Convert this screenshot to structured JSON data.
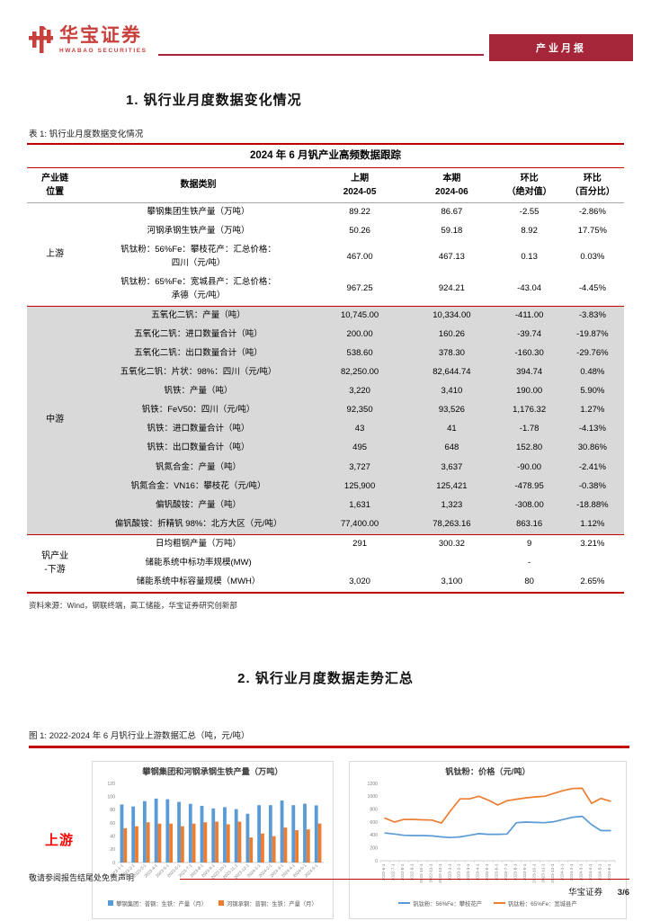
{
  "brand": {
    "logo_title": "华宝证券",
    "logo_subtitle": "HWABAO SECURITIES",
    "badge_label": "产业月报"
  },
  "section1": {
    "title": "1. 钒行业月度数据变化情况"
  },
  "table": {
    "caption": "表 1: 钒行业月度数据变化情况",
    "title": "2024 年 6 月钒产业高频数据跟踪",
    "headers": {
      "chain_line1": "产业链",
      "chain_line2": "位置",
      "category": "数据类别",
      "prev_line1": "上期",
      "prev_line2": "2024-05",
      "curr_line1": "本期",
      "curr_line2": "2024-06",
      "abs_line1": "环比",
      "abs_line2": "（绝对值）",
      "pct_line1": "环比",
      "pct_line2": "（百分比）"
    },
    "sections": [
      {
        "label": "上游",
        "shaded": false,
        "rows": [
          {
            "name": "攀钢集团生铁产量（万吨）",
            "prev": "89.22",
            "curr": "86.67",
            "abs": "-2.55",
            "pct": "-2.86%",
            "dir": "down"
          },
          {
            "name": "河钢承钢生铁产量（万吨）",
            "prev": "50.26",
            "curr": "59.18",
            "abs": "8.92",
            "pct": "17.75%",
            "dir": "up"
          },
          {
            "name": "钒钛粉：56%Fe：攀枝花产：汇总价格：\n四川（元/吨）",
            "prev": "467.00",
            "curr": "467.13",
            "abs": "0.13",
            "pct": "0.03%",
            "dir": "up"
          },
          {
            "name": "钒钛粉：65%Fe：宽城县产：汇总价格：\n承德（元/吨）",
            "prev": "967.25",
            "curr": "924.21",
            "abs": "-43.04",
            "pct": "-4.45%",
            "dir": "down"
          }
        ]
      },
      {
        "label": "中游",
        "shaded": true,
        "rows": [
          {
            "name": "五氧化二钒：产量（吨）",
            "prev": "10,745.00",
            "curr": "10,334.00",
            "abs": "-411.00",
            "pct": "-3.83%",
            "dir": "down"
          },
          {
            "name": "五氧化二钒：进口数量合计（吨）",
            "prev": "200.00",
            "curr": "160.26",
            "abs": "-39.74",
            "pct": "-19.87%",
            "dir": "down"
          },
          {
            "name": "五氧化二钒：出口数量合计（吨）",
            "prev": "538.60",
            "curr": "378.30",
            "abs": "-160.30",
            "pct": "-29.76%",
            "dir": "down"
          },
          {
            "name": "五氧化二钒：片状：98%：四川（元/吨）",
            "prev": "82,250.00",
            "curr": "82,644.74",
            "abs": "394.74",
            "pct": "0.48%",
            "dir": "up"
          },
          {
            "name": "钒铁：产量（吨）",
            "prev": "3,220",
            "curr": "3,410",
            "abs": "190.00",
            "pct": "5.90%",
            "dir": "up"
          },
          {
            "name": "钒铁：FeV50：四川（元/吨）",
            "prev": "92,350",
            "curr": "93,526",
            "abs": "1,176.32",
            "pct": "1.27%",
            "dir": "up"
          },
          {
            "name": "钒铁：进口数量合计（吨）",
            "prev": "43",
            "curr": "41",
            "abs": "-1.78",
            "pct": "-4.13%",
            "dir": "down"
          },
          {
            "name": "钒铁：出口数量合计（吨）",
            "prev": "495",
            "curr": "648",
            "abs": "152.80",
            "pct": "30.86%",
            "dir": "up"
          },
          {
            "name": "钒氮合金：产量（吨）",
            "prev": "3,727",
            "curr": "3,637",
            "abs": "-90.00",
            "pct": "-2.41%",
            "dir": "down"
          },
          {
            "name": "钒氮合金：VN16：攀枝花（元/吨）",
            "prev": "125,900",
            "curr": "125,421",
            "abs": "-478.95",
            "pct": "-0.38%",
            "dir": "down"
          },
          {
            "name": "偏钒酸铵：产量（吨）",
            "prev": "1,631",
            "curr": "1,323",
            "abs": "-308.00",
            "pct": "-18.88%",
            "dir": "down"
          },
          {
            "name": "偏钒酸铵：折精钒 98%：北方大区（元/吨）",
            "prev": "77,400.00",
            "curr": "78,263.16",
            "abs": "863.16",
            "pct": "1.12%",
            "dir": "up"
          }
        ]
      },
      {
        "label": "钒产业\n-下游",
        "shaded": false,
        "rows": [
          {
            "name": "日均粗钢产量（万吨）",
            "prev": "291",
            "curr": "300.32",
            "abs": "9",
            "pct": "3.21%",
            "dir": "up"
          },
          {
            "name": "储能系统中标功率规模(MW)",
            "prev": "",
            "curr": "",
            "abs": "-",
            "pct": "",
            "dir": "up"
          },
          {
            "name": "储能系统中标容量规模（MWH）",
            "prev": "3,020",
            "curr": "3,100",
            "abs": "80",
            "pct": "2.65%",
            "dir": "up"
          }
        ]
      }
    ],
    "source": "资料来源：Wind，钢联终端，高工储能，华宝证券研究创新部"
  },
  "section2": {
    "title": "2. 钒行业月度数据走势汇总"
  },
  "figure": {
    "caption": "图 1: 2022-2024 年 6 月钒行业上游数据汇总（吨，元/吨）",
    "row_label": "上游"
  },
  "chart_data": [
    {
      "type": "bar",
      "title": "攀钢集团和河钢承钢生铁产量（万吨）",
      "categories": [
        "2023-1-1",
        "2023-2-1",
        "2023-3-1",
        "2023-4-1",
        "2023-5-1",
        "2023-6-1",
        "2023-7-1",
        "2023-8-1",
        "2023-9-1",
        "2023-10-1",
        "2023-11-1",
        "2023-12-1",
        "2024-1-1",
        "2024-2-1",
        "2024-3-1",
        "2024-4-1",
        "2024-5-1",
        "2024-6-1"
      ],
      "series": [
        {
          "name": "攀钢集团：普钢：生铁：产量（月）",
          "color": "#5B9BD5",
          "values": [
            88,
            85,
            93,
            97,
            96,
            92,
            89,
            86,
            82,
            84,
            81,
            74,
            87,
            87,
            94,
            87,
            89.22,
            86.67
          ]
        },
        {
          "name": "河钢承钢：普钢：生铁：产量（月）",
          "color": "#ED7D31",
          "values": [
            52,
            55,
            61,
            59,
            59,
            55,
            59,
            61,
            62,
            58,
            62,
            38,
            44,
            40,
            53,
            49,
            50.26,
            59.18
          ]
        }
      ],
      "ylim": [
        0,
        120
      ],
      "ystep": 20,
      "grid": false,
      "legend_position": "bottom"
    },
    {
      "type": "line",
      "title": "钒钛粉：价格（元/吨）",
      "categories": [
        "2022-6-1",
        "2022-7-1",
        "2022-8-1",
        "2022-9-1",
        "2022-10-1",
        "2022-11-1",
        "2022-12-1",
        "2023-1-1",
        "2023-2-1",
        "2023-3-1",
        "2023-4-1",
        "2023-5-1",
        "2023-6-1",
        "2023-7-1",
        "2023-8-1",
        "2023-9-1",
        "2023-10-1",
        "2023-11-1",
        "2023-12-1",
        "2024-1-1",
        "2024-2-1",
        "2024-3-1",
        "2024-4-1",
        "2024-5-1",
        "2024-6-1"
      ],
      "series": [
        {
          "name": "钒钛粉：56%Fe：攀枝花产",
          "color": "#5B9BD5",
          "values": [
            430,
            415,
            395,
            390,
            390,
            385,
            370,
            360,
            370,
            395,
            420,
            410,
            410,
            415,
            590,
            600,
            595,
            590,
            605,
            640,
            675,
            690,
            560,
            467.0,
            467.13
          ]
        },
        {
          "name": "钒钛粉：65%Fe：宽城县产",
          "color": "#ED7D31",
          "values": [
            660,
            600,
            640,
            640,
            635,
            630,
            585,
            780,
            960,
            960,
            1000,
            940,
            865,
            930,
            955,
            975,
            990,
            1000,
            1045,
            1090,
            1120,
            1125,
            890,
            967.25,
            924.21
          ]
        }
      ],
      "ylim": [
        0,
        1200
      ],
      "ystep": 200,
      "grid": false,
      "legend_position": "bottom"
    }
  ],
  "footer": {
    "disclaimer": "敬请参阅报告结尾处免责声明",
    "brand": "华宝证券",
    "page": "3/6"
  }
}
